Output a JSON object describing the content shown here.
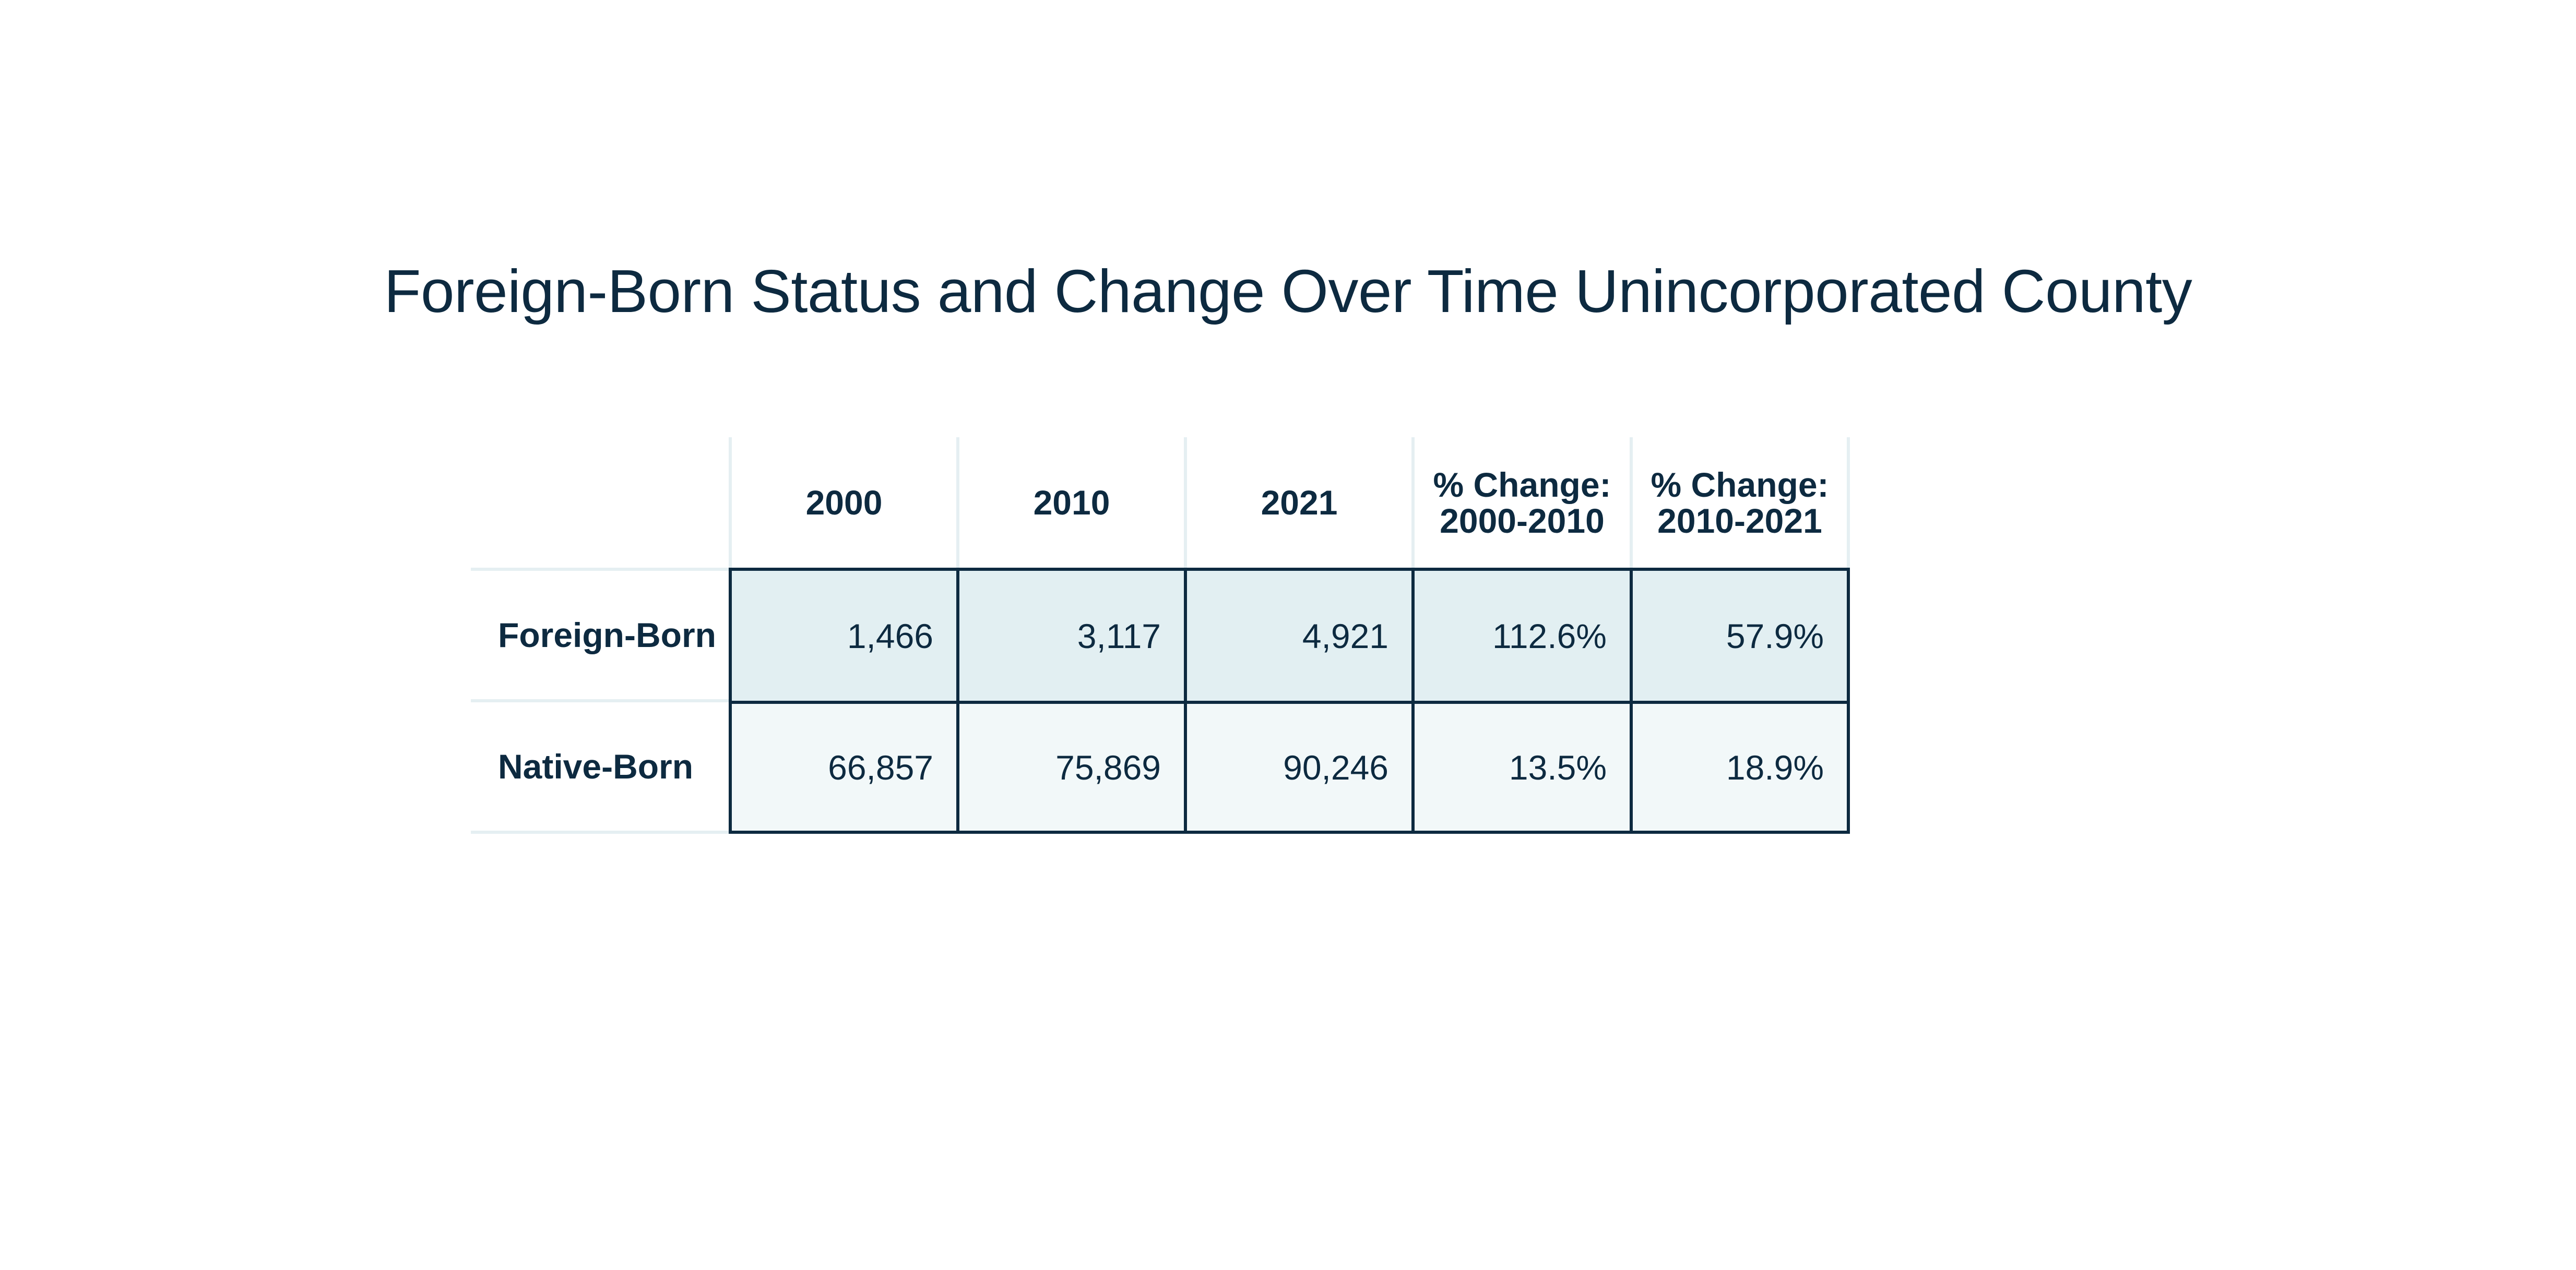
{
  "title": "Foreign-Born Status and Change Over Time Unincorporated County",
  "table": {
    "columns": [
      {
        "line1": "2000",
        "line2": ""
      },
      {
        "line1": "2010",
        "line2": ""
      },
      {
        "line1": "2021",
        "line2": ""
      },
      {
        "line1": "% Change:",
        "line2": "2000-2010"
      },
      {
        "line1": "% Change:",
        "line2": "2010-2021"
      }
    ],
    "rows": [
      {
        "label": "Foreign-Born",
        "cells": [
          "1,466",
          "3,117",
          "4,921",
          "112.6%",
          "57.9%"
        ]
      },
      {
        "label": "Native-Born",
        "cells": [
          "66,857",
          "75,869",
          "90,246",
          "13.5%",
          "18.9%"
        ]
      }
    ]
  },
  "colors": {
    "text": "#0d2a40",
    "row1_fill": "#e2eff2",
    "row2_fill": "#f2f8f9",
    "border": "#0d2a40",
    "light_rule": "#e5eff2"
  }
}
